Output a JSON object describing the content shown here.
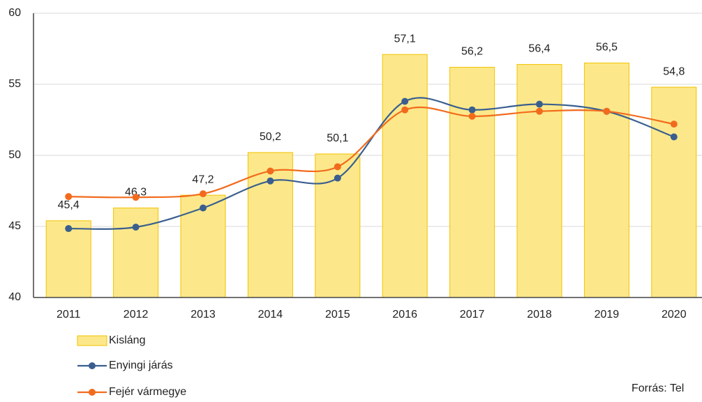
{
  "chart_data": {
    "type": "bar",
    "categories": [
      "2011",
      "2012",
      "2013",
      "2014",
      "2015",
      "2016",
      "2017",
      "2018",
      "2019",
      "2020"
    ],
    "series": [
      {
        "name": "Kisláng",
        "type": "bar",
        "color": "#fce88a",
        "edge": "#f2c200",
        "values": [
          45.4,
          46.3,
          47.2,
          50.2,
          50.1,
          57.1,
          56.2,
          56.4,
          56.5,
          54.8
        ],
        "value_labels": [
          "45,4",
          "46,3",
          "47,2",
          "50,2",
          "50,1",
          "57,1",
          "56,2",
          "56,4",
          "56,5",
          "54,8"
        ]
      },
      {
        "name": "Enyingi járás",
        "type": "line",
        "color": "#3a5f8f",
        "values": [
          44.85,
          44.95,
          46.3,
          48.2,
          48.4,
          53.8,
          53.2,
          53.6,
          53.1,
          51.3
        ]
      },
      {
        "name": "Fejér vármegye",
        "type": "line",
        "color": "#f26b1d",
        "values": [
          47.1,
          47.05,
          47.3,
          48.9,
          49.2,
          53.2,
          52.75,
          53.1,
          53.1,
          52.2
        ]
      }
    ],
    "ylim": [
      40,
      60
    ],
    "yticks": [
      40,
      45,
      50,
      55,
      60
    ],
    "grid": true,
    "source": "Forrás: Tel"
  }
}
